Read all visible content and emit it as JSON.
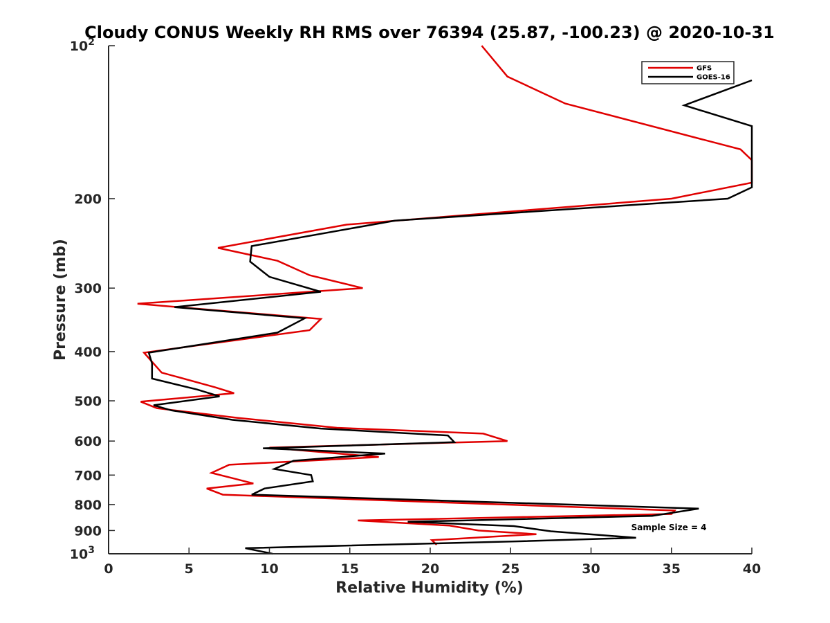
{
  "chart_data": {
    "type": "line",
    "title": "Cloudy CONUS Weekly RH RMS over 76394 (25.87, -100.23) @ 2020-10-31",
    "xlabel": "Relative Humidity (%)",
    "ylabel": "Pressure (mb)",
    "xlim": [
      0,
      40
    ],
    "ylim": [
      100,
      1000
    ],
    "yscale": "log",
    "y_reversed": true,
    "grid": false,
    "legend_location": "top-right",
    "x_ticks": [
      "0",
      "5",
      "10",
      "15",
      "20",
      "25",
      "30",
      "35",
      "40"
    ],
    "y_ticks": [
      {
        "value": 100,
        "label": "10",
        "exp": "2"
      },
      {
        "value": 200,
        "label": "200"
      },
      {
        "value": 300,
        "label": "300"
      },
      {
        "value": 400,
        "label": "400"
      },
      {
        "value": 500,
        "label": "500"
      },
      {
        "value": 600,
        "label": "600"
      },
      {
        "value": 700,
        "label": "700"
      },
      {
        "value": 800,
        "label": "800"
      },
      {
        "value": 900,
        "label": "900"
      },
      {
        "value": 1000,
        "label": "10",
        "exp": "3"
      }
    ],
    "series": [
      {
        "name": "GFS",
        "color": "#e00000",
        "points": [
          [
            23.2,
            100
          ],
          [
            24.8,
            115
          ],
          [
            28.4,
            130
          ],
          [
            39.3,
            160
          ],
          [
            40,
            168
          ],
          [
            40,
            186
          ],
          [
            35.0,
            200
          ],
          [
            14.8,
            225
          ],
          [
            6.8,
            250
          ],
          [
            10.5,
            265
          ],
          [
            12.5,
            283
          ],
          [
            15.8,
            300
          ],
          [
            1.8,
            322
          ],
          [
            13.2,
            345
          ],
          [
            12.5,
            363
          ],
          [
            2.2,
            402
          ],
          [
            3.3,
            440
          ],
          [
            6.6,
            470
          ],
          [
            7.8,
            483
          ],
          [
            2.0,
            502
          ],
          [
            3.0,
            517
          ],
          [
            8.0,
            540
          ],
          [
            14.2,
            565
          ],
          [
            23.3,
            580
          ],
          [
            24.8,
            600
          ],
          [
            10.0,
            618
          ],
          [
            16.8,
            645
          ],
          [
            7.5,
            668
          ],
          [
            6.4,
            693
          ],
          [
            7.8,
            711
          ],
          [
            9.0,
            727
          ],
          [
            6.1,
            744
          ],
          [
            7.1,
            765
          ],
          [
            35.2,
            822
          ],
          [
            35.0,
            835
          ],
          [
            15.5,
            860
          ],
          [
            21.2,
            880
          ],
          [
            23.0,
            900
          ],
          [
            26.6,
            915
          ],
          [
            20.1,
            940
          ],
          [
            20.4,
            960
          ]
        ]
      },
      {
        "name": "GOES-16",
        "color": "#000000",
        "points": [
          [
            40,
            117
          ],
          [
            35.8,
            131
          ],
          [
            40,
            144
          ],
          [
            40,
            190
          ],
          [
            38.5,
            200
          ],
          [
            17.8,
            221
          ],
          [
            8.9,
            248
          ],
          [
            8.8,
            266
          ],
          [
            10.0,
            285
          ],
          [
            13.2,
            305
          ],
          [
            4.1,
            327
          ],
          [
            12.2,
            344
          ],
          [
            10.5,
            367
          ],
          [
            2.5,
            402
          ],
          [
            2.7,
            422
          ],
          [
            2.7,
            452
          ],
          [
            5.5,
            475
          ],
          [
            6.9,
            490
          ],
          [
            2.8,
            510
          ],
          [
            3.9,
            522
          ],
          [
            7.7,
            545
          ],
          [
            13.2,
            567
          ],
          [
            21.1,
            585
          ],
          [
            21.5,
            603
          ],
          [
            9.6,
            620
          ],
          [
            17.2,
            635
          ],
          [
            11.5,
            656
          ],
          [
            10.3,
            681
          ],
          [
            12.6,
            700
          ],
          [
            12.7,
            720
          ],
          [
            9.7,
            744
          ],
          [
            8.9,
            765
          ],
          [
            36.7,
            815
          ],
          [
            33.8,
            842
          ],
          [
            18.6,
            865
          ],
          [
            25.2,
            882
          ],
          [
            27.5,
            903
          ],
          [
            32.8,
            930
          ],
          [
            25.5,
            945
          ],
          [
            8.5,
            975
          ],
          [
            10.2,
            1000
          ]
        ]
      }
    ],
    "annotations": [
      {
        "text": "Sample Size = 4",
        "x": 32.5,
        "y": 905
      }
    ]
  }
}
